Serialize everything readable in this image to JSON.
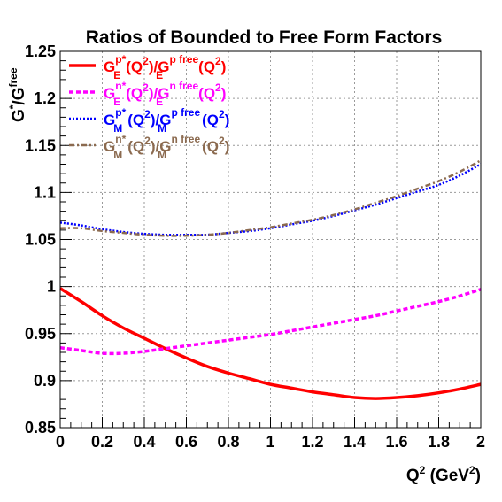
{
  "chart_data": {
    "type": "line",
    "title": "Ratios of Bounded to Free Form Factors",
    "xlabel": {
      "main": "Q",
      "sup": "2",
      "rest": " (GeV",
      "sup2": "2",
      "end": ")"
    },
    "ylabel": {
      "g": "G",
      "star": "*",
      "slash": "/G",
      "free": "free"
    },
    "xlim": [
      0,
      2
    ],
    "ylim": [
      0.85,
      1.25
    ],
    "xticks": [
      0,
      0.2,
      0.4,
      0.6,
      0.8,
      1,
      1.2,
      1.4,
      1.6,
      1.8,
      2
    ],
    "xtick_labels": [
      "0",
      "0.2",
      "0.4",
      "0.6",
      "0.8",
      "1",
      "1.2",
      "1.4",
      "1.6",
      "1.8",
      "2"
    ],
    "yticks": [
      0.85,
      0.9,
      0.95,
      1,
      1.05,
      1.1,
      1.15,
      1.2,
      1.25
    ],
    "ytick_labels": [
      "0.85",
      "0.9",
      "0.95",
      "1",
      "1.05",
      "1.1",
      "1.15",
      "1.2",
      "1.25"
    ],
    "grid": true,
    "legend_position": "top-left",
    "series": [
      {
        "id": "GEp",
        "color": "#ff0000",
        "style": "solid",
        "label": {
          "sub": "E",
          "nuc": "p",
          "free": "p free"
        },
        "x": [
          0,
          0.1,
          0.2,
          0.3,
          0.4,
          0.5,
          0.6,
          0.7,
          0.8,
          0.9,
          1.0,
          1.1,
          1.2,
          1.3,
          1.4,
          1.5,
          1.6,
          1.7,
          1.8,
          1.9,
          2.0
        ],
        "y": [
          0.998,
          0.984,
          0.969,
          0.956,
          0.945,
          0.934,
          0.924,
          0.915,
          0.908,
          0.902,
          0.896,
          0.892,
          0.888,
          0.885,
          0.882,
          0.881,
          0.882,
          0.884,
          0.887,
          0.891,
          0.896
        ]
      },
      {
        "id": "GEn",
        "color": "#ff00ff",
        "style": "dashed",
        "label": {
          "sub": "E",
          "nuc": "n",
          "free": "n free"
        },
        "x": [
          0,
          0.1,
          0.2,
          0.3,
          0.4,
          0.5,
          0.6,
          0.7,
          0.8,
          0.9,
          1.0,
          1.1,
          1.2,
          1.3,
          1.4,
          1.5,
          1.6,
          1.7,
          1.8,
          1.9,
          2.0
        ],
        "y": [
          0.935,
          0.932,
          0.929,
          0.929,
          0.931,
          0.934,
          0.937,
          0.94,
          0.943,
          0.946,
          0.949,
          0.953,
          0.957,
          0.961,
          0.965,
          0.969,
          0.974,
          0.979,
          0.984,
          0.99,
          0.997
        ]
      },
      {
        "id": "GMp",
        "color": "#0000ff",
        "style": "dotted",
        "label": {
          "sub": "M",
          "nuc": "p",
          "free": "p free"
        },
        "x": [
          0,
          0.1,
          0.2,
          0.3,
          0.4,
          0.5,
          0.6,
          0.7,
          0.8,
          0.9,
          1.0,
          1.1,
          1.2,
          1.3,
          1.4,
          1.5,
          1.6,
          1.7,
          1.8,
          1.9,
          2.0
        ],
        "y": [
          1.068,
          1.065,
          1.061,
          1.058,
          1.056,
          1.055,
          1.055,
          1.055,
          1.057,
          1.059,
          1.062,
          1.066,
          1.07,
          1.075,
          1.081,
          1.087,
          1.094,
          1.101,
          1.108,
          1.118,
          1.13
        ]
      },
      {
        "id": "GMn",
        "color": "#8b6a4f",
        "style": "dashdot",
        "label": {
          "sub": "M",
          "nuc": "n",
          "free": "n free"
        },
        "x": [
          0,
          0.1,
          0.2,
          0.3,
          0.4,
          0.5,
          0.6,
          0.7,
          0.8,
          0.9,
          1.0,
          1.1,
          1.2,
          1.3,
          1.4,
          1.5,
          1.6,
          1.7,
          1.8,
          1.9,
          2.0
        ],
        "y": [
          1.062,
          1.062,
          1.059,
          1.057,
          1.055,
          1.054,
          1.054,
          1.055,
          1.057,
          1.06,
          1.063,
          1.067,
          1.071,
          1.076,
          1.082,
          1.089,
          1.096,
          1.104,
          1.112,
          1.122,
          1.134
        ]
      }
    ],
    "legend": {
      "text": {
        "open": "(Q",
        "sq": "2",
        "close": ")",
        "slash": ")/G",
        "g": "G",
        "star": "*"
      }
    }
  }
}
